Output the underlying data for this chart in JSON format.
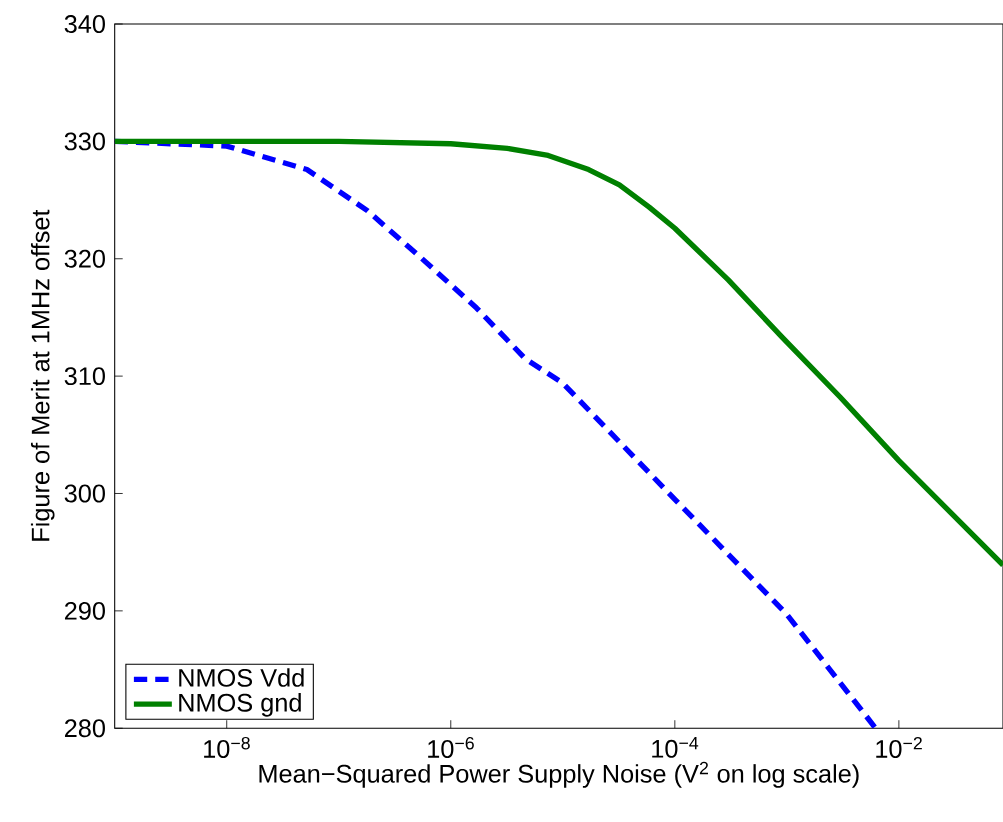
{
  "chart_data": {
    "type": "line",
    "xlabel": "Mean−Squared Power Supply Noise (V$^{2}$ on log scale)",
    "ylabel": "Figure of Merit at 1MHz offset",
    "log": "x",
    "xlim": [
      1e-09,
      0.085
    ],
    "ylim": [
      280,
      340
    ],
    "xticks": [
      {
        "value": 1e-08,
        "label": "10$^{−8}$"
      },
      {
        "value": 1e-06,
        "label": "10$^{−6}$"
      },
      {
        "value": 0.0001,
        "label": "10$^{−4}$"
      },
      {
        "value": 0.01,
        "label": "10$^{−2}$"
      }
    ],
    "yticks": [
      280,
      290,
      300,
      310,
      320,
      330,
      340
    ],
    "grid": false,
    "legend": "bottom left",
    "series": [
      {
        "name": "NMOS Vdd",
        "color": "#0000ff",
        "line_style": "dashed",
        "x": [
          1e-09,
          1e-08,
          5.2e-08,
          1.8e-07,
          5.4e-07,
          1.7e-06,
          4.6e-06,
          1e-05,
          0.0001,
          0.001,
          0.0062
        ],
        "values": [
          330,
          329.6,
          327.6,
          324.1,
          320.1,
          315.8,
          311.5,
          309.4,
          299.5,
          289.7,
          280
        ]
      },
      {
        "name": "NMOS gnd",
        "color": "#008000",
        "line_style": "solid",
        "x": [
          1e-09,
          1e-07,
          1e-06,
          3.2e-06,
          7.4e-06,
          1.7e-05,
          3.2e-05,
          5.9e-05,
          0.0001,
          0.0003,
          0.00091,
          0.003,
          0.01,
          0.085
        ],
        "values": [
          330,
          330,
          329.8,
          329.4,
          328.8,
          327.6,
          326.3,
          324.4,
          322.6,
          318.2,
          313.3,
          308.2,
          302.8,
          293.9
        ]
      }
    ]
  }
}
